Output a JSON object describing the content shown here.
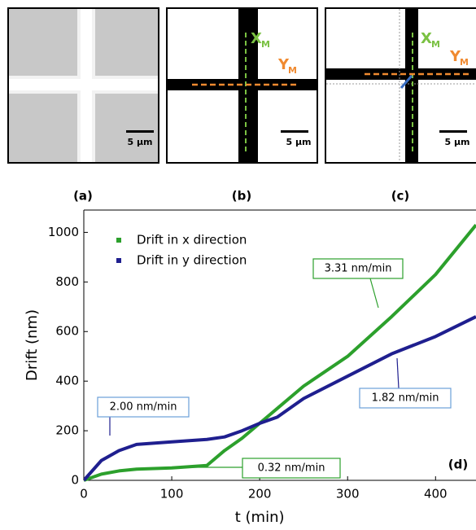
{
  "panels": [
    {
      "label": "(a)",
      "scale_bar": "5 µm"
    },
    {
      "label": "(b)",
      "scale_bar": "5 µm",
      "x_marker": "X",
      "y_marker": "Y",
      "marker_subscript": "M"
    },
    {
      "label": "(c)",
      "scale_bar": "5 µm",
      "x_marker": "X",
      "y_marker": "Y",
      "marker_subscript": "M"
    }
  ],
  "chart_data": {
    "type": "line",
    "x_label": "t (min)",
    "y_label": "Drift (nm)",
    "panel_label": "(d)",
    "x": [
      0,
      20,
      40,
      60,
      100,
      140,
      160,
      180,
      200,
      220,
      250,
      300,
      350,
      400,
      446
    ],
    "series": [
      {
        "name": "Drift in x direction",
        "color": "#2ca02c",
        "values": [
          0,
          25,
          38,
          45,
          50,
          60,
          120,
          170,
          230,
          290,
          380,
          500,
          660,
          830,
          1030
        ]
      },
      {
        "name": "Drift in y direction",
        "color": "#1f1f8f",
        "values": [
          0,
          80,
          120,
          145,
          155,
          165,
          175,
          200,
          230,
          255,
          330,
          420,
          510,
          580,
          660
        ]
      }
    ],
    "annotations": [
      "2.00 nm/min",
      "0.32 nm/min",
      "3.31 nm/min",
      "1.82 nm/min"
    ],
    "xlim": [
      0,
      446
    ],
    "ylim": [
      0,
      1090
    ],
    "xticks": [
      0,
      100,
      200,
      300,
      400
    ],
    "yticks": [
      0,
      200,
      400,
      600,
      800,
      1000
    ]
  }
}
